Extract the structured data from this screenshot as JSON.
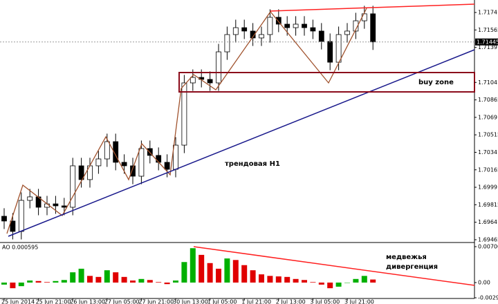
{
  "chart_data": [
    {
      "type": "candlestick",
      "categories": [
        "25 Jun 2014",
        null,
        null,
        null,
        "25 Jun 21:00",
        null,
        null,
        null,
        "26 Jun 13:00",
        null,
        null,
        null,
        "27 Jun 05:00",
        null,
        null,
        null,
        "27 Jun 21:00",
        null,
        null,
        null,
        "30 Jun 13:00",
        null,
        null,
        null,
        "1 Jul 05:00",
        null,
        null,
        null,
        "1 Jul 21:00",
        null,
        null,
        null,
        "2 Jul 13:00",
        null,
        null,
        null,
        "3 Jul 05:00",
        null,
        null,
        null,
        "3 Jul 21:00",
        null,
        null,
        null
      ],
      "open": [
        1.697,
        1.69652,
        1.69548,
        1.69859,
        1.69894,
        1.6979,
        1.69824,
        1.69804,
        1.6979,
        1.70205,
        1.70067,
        1.70205,
        1.70274,
        1.70447,
        1.7024,
        1.70205,
        1.70101,
        1.70378,
        1.70309,
        1.7024,
        1.7017,
        1.70412,
        1.71035,
        1.7109,
        1.7107,
        1.71035,
        1.71346,
        1.71519,
        1.71588,
        1.71554,
        1.71485,
        1.71519,
        1.71692,
        1.71623,
        1.71588,
        1.71623,
        1.71588,
        1.71554,
        1.7145,
        1.71242,
        1.71519,
        1.71554,
        1.71657,
        1.71727
      ],
      "high": [
        1.6978,
        1.69732,
        1.69939,
        1.69974,
        1.69974,
        1.69904,
        1.69904,
        1.69884,
        1.70285,
        1.70285,
        1.70285,
        1.70354,
        1.70527,
        1.70527,
        1.7032,
        1.70285,
        1.70458,
        1.70458,
        1.70389,
        1.7032,
        1.70492,
        1.71115,
        1.7117,
        1.7117,
        1.7115,
        1.71426,
        1.71599,
        1.71668,
        1.71668,
        1.71634,
        1.71599,
        1.71772,
        1.71772,
        1.71703,
        1.71703,
        1.71703,
        1.71668,
        1.71634,
        1.7153,
        1.71599,
        1.71634,
        1.71737,
        1.71807,
        1.71807
      ],
      "low": [
        1.69572,
        1.69468,
        1.69468,
        1.69779,
        1.6971,
        1.6971,
        1.69724,
        1.6971,
        1.6971,
        1.69987,
        1.69987,
        1.70125,
        1.70194,
        1.7016,
        1.70125,
        1.70021,
        1.70021,
        1.70229,
        1.7016,
        1.7009,
        1.7009,
        1.70332,
        1.70955,
        1.7099,
        1.70955,
        1.70955,
        1.71266,
        1.71439,
        1.71474,
        1.71405,
        1.71405,
        1.71439,
        1.71543,
        1.71508,
        1.71508,
        1.71508,
        1.71474,
        1.7137,
        1.71162,
        1.71162,
        1.71439,
        1.71474,
        1.71577,
        1.71365
      ],
      "close": [
        1.69652,
        1.69548,
        1.69859,
        1.69894,
        1.6979,
        1.69824,
        1.69804,
        1.6979,
        1.70205,
        1.70067,
        1.70205,
        1.70274,
        1.70447,
        1.7024,
        1.70205,
        1.70101,
        1.70378,
        1.70309,
        1.7024,
        1.7017,
        1.70412,
        1.71035,
        1.7109,
        1.7107,
        1.71035,
        1.71346,
        1.71519,
        1.71588,
        1.71554,
        1.71485,
        1.71519,
        1.71692,
        1.71623,
        1.71588,
        1.71623,
        1.71588,
        1.71554,
        1.7145,
        1.71242,
        1.71519,
        1.71554,
        1.71657,
        1.71727,
        1.71445
      ],
      "up_color": "#ffffff",
      "down_color": "#000000",
      "current_price": 1.71445,
      "ylim": [
        1.69444,
        1.71865
      ],
      "yticks": [
        1.7174,
        1.71565,
        1.7139,
        1.7104,
        1.70865,
        1.7069,
        1.70515,
        1.7034,
        1.70165,
        1.6999,
        1.69815,
        1.6964,
        1.69465
      ],
      "annotations": [
        "buy zone",
        "трендовая H1"
      ]
    },
    {
      "type": "bar",
      "title": "AO 0.000595",
      "values": [
        -0.0004,
        -0.0011,
        -0.0007,
        0.0004,
        0.0003,
        0.0001,
        0.0003,
        0.0005,
        0.002,
        0.0027,
        0.0013,
        0.0011,
        0.0024,
        0.002,
        0.0011,
        0.0004,
        0.0007,
        0.0005,
        0.0001,
        -0.0003,
        0.0004,
        0.004,
        0.0067,
        0.0054,
        0.0038,
        0.0027,
        0.0047,
        0.0044,
        0.0034,
        0.0024,
        0.0016,
        0.0013,
        0.0012,
        0.0011,
        0.0007,
        0.0005,
        0.0001,
        -0.0004,
        -0.0011,
        -0.0008,
        0.0,
        0.0007,
        0.0013,
        0.000595
      ],
      "up_color": "#00b000",
      "down_color": "#e00000",
      "ylim": [
        -0.0031,
        0.00754
      ],
      "yticks": [
        0.007003,
        {
          "value": 0,
          "label": "0.00"
        },
        -0.00297
      ],
      "annotations": [
        "медвежья",
        "дивергенция"
      ]
    }
  ]
}
